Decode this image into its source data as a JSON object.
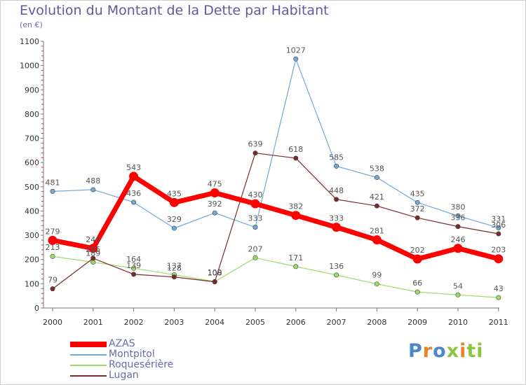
{
  "title": "Evolution du Montant de la Dette par Habitant",
  "unit_label": "(en €)",
  "logo_text": "Proxiti",
  "chart_data": {
    "type": "line",
    "title": "Evolution du Montant de la Dette par Habitant",
    "ylabel": "(en €)",
    "xlabel": "",
    "categories": [
      "2000",
      "2001",
      "2002",
      "2003",
      "2004",
      "2005",
      "2006",
      "2007",
      "2008",
      "2009",
      "2010",
      "2011"
    ],
    "ylim": [
      0,
      1100
    ],
    "yticks": [
      0,
      100,
      200,
      300,
      400,
      500,
      600,
      700,
      800,
      900,
      1000,
      1100
    ],
    "grid": false,
    "legend_position": "bottom-left",
    "series": [
      {
        "name": "AZAS",
        "color": "#ff0000",
        "values": [
          279,
          246,
          543,
          435,
          475,
          430,
          382,
          333,
          281,
          202,
          246,
          203
        ]
      },
      {
        "name": "Montpitol",
        "color": "#6fa8dc",
        "values": [
          481,
          488,
          436,
          329,
          392,
          333,
          1027,
          585,
          538,
          435,
          380,
          331
        ]
      },
      {
        "name": "Roquesérière",
        "color": "#99dd66",
        "values": [
          213,
          189,
          164,
          137,
          109,
          207,
          171,
          136,
          99,
          66,
          54,
          43
        ]
      },
      {
        "name": "Lugan",
        "color": "#7a2a2a",
        "values": [
          79,
          205,
          139,
          128,
          108,
          639,
          618,
          448,
          421,
          372,
          336,
          306
        ]
      }
    ]
  }
}
